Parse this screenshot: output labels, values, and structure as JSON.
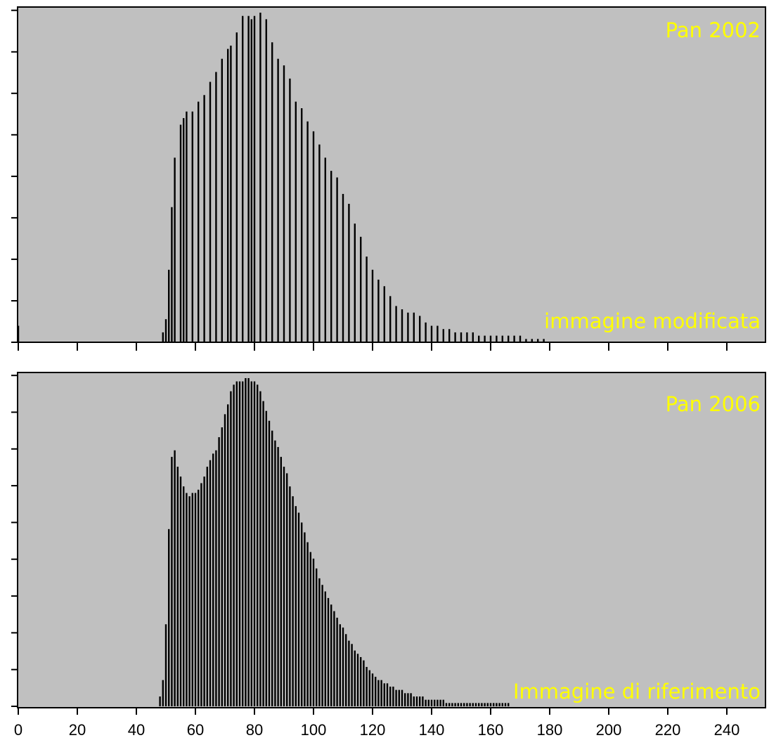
{
  "chart_data": [
    {
      "type": "bar",
      "title": "",
      "xlabel": "",
      "ylabel": "",
      "xlim": [
        0,
        255
      ],
      "ylim": [
        0,
        1
      ],
      "grid": false,
      "annotations": [
        "Pan 2002",
        "immagine modificata"
      ],
      "annotation_color": "#ffff00",
      "plot_background": "#c0c0c0",
      "bar_color": "#000000",
      "y_tick_count": 8,
      "x": [
        0,
        49,
        50,
        51,
        52,
        53,
        55,
        56,
        57,
        59,
        61,
        63,
        65,
        67,
        69,
        71,
        72,
        74,
        76,
        78,
        79,
        80,
        82,
        84,
        86,
        88,
        90,
        92,
        94,
        96,
        98,
        100,
        102,
        104,
        106,
        108,
        110,
        112,
        114,
        116,
        118,
        120,
        122,
        124,
        126,
        128,
        130,
        132,
        134,
        136,
        138,
        140,
        142,
        144,
        146,
        148,
        150,
        152,
        154,
        156,
        158,
        160,
        162,
        164,
        166,
        168,
        170,
        172,
        174,
        176,
        178
      ],
      "values": [
        0.05,
        0.03,
        0.07,
        0.22,
        0.41,
        0.56,
        0.66,
        0.68,
        0.7,
        0.7,
        0.73,
        0.75,
        0.79,
        0.82,
        0.86,
        0.89,
        0.9,
        0.94,
        0.99,
        0.99,
        0.98,
        0.99,
        1.0,
        0.98,
        0.91,
        0.86,
        0.84,
        0.8,
        0.73,
        0.71,
        0.67,
        0.64,
        0.6,
        0.56,
        0.52,
        0.5,
        0.45,
        0.42,
        0.36,
        0.32,
        0.26,
        0.22,
        0.19,
        0.17,
        0.14,
        0.11,
        0.1,
        0.09,
        0.09,
        0.08,
        0.06,
        0.05,
        0.05,
        0.04,
        0.04,
        0.03,
        0.03,
        0.03,
        0.03,
        0.02,
        0.02,
        0.02,
        0.02,
        0.02,
        0.02,
        0.02,
        0.02,
        0.01,
        0.01,
        0.01,
        0.01
      ]
    },
    {
      "type": "bar",
      "title": "",
      "xlabel": "",
      "ylabel": "",
      "xlim": [
        0,
        255
      ],
      "ylim": [
        0,
        1
      ],
      "grid": false,
      "annotations": [
        "Pan 2006",
        "Immagine di riferimento"
      ],
      "annotation_color": "#ffff00",
      "plot_background": "#c0c0c0",
      "bar_color": "#000000",
      "y_tick_count": 9,
      "x_ticks": [
        0,
        20,
        40,
        60,
        80,
        100,
        120,
        140,
        160,
        180,
        200,
        220,
        240
      ],
      "x_tick_labels": [
        "0",
        "20",
        "40",
        "60",
        "80",
        "100",
        "120",
        "140",
        "160",
        "180",
        "200",
        "220",
        "240"
      ],
      "x": [
        48,
        49,
        50,
        51,
        52,
        53,
        54,
        55,
        56,
        57,
        58,
        59,
        60,
        61,
        62,
        63,
        64,
        65,
        66,
        67,
        68,
        69,
        70,
        71,
        72,
        73,
        74,
        75,
        76,
        77,
        78,
        79,
        80,
        81,
        82,
        83,
        84,
        85,
        86,
        87,
        88,
        89,
        90,
        91,
        92,
        93,
        94,
        95,
        96,
        97,
        98,
        99,
        100,
        101,
        102,
        103,
        104,
        105,
        106,
        107,
        108,
        109,
        110,
        111,
        112,
        113,
        114,
        115,
        116,
        117,
        118,
        119,
        120,
        121,
        122,
        123,
        124,
        125,
        126,
        127,
        128,
        129,
        130,
        131,
        132,
        133,
        134,
        135,
        136,
        137,
        138,
        139,
        140,
        141,
        142,
        143,
        144,
        145,
        146,
        147,
        148,
        149,
        150,
        151,
        152,
        153,
        154,
        155,
        156,
        157,
        158,
        159,
        160,
        161,
        162,
        163,
        164,
        165,
        166
      ],
      "values": [
        0.03,
        0.08,
        0.25,
        0.54,
        0.76,
        0.78,
        0.73,
        0.7,
        0.67,
        0.65,
        0.64,
        0.65,
        0.65,
        0.66,
        0.68,
        0.7,
        0.73,
        0.75,
        0.77,
        0.78,
        0.82,
        0.85,
        0.89,
        0.92,
        0.96,
        0.98,
        0.99,
        0.99,
        0.99,
        1.0,
        1.0,
        0.99,
        0.99,
        0.98,
        0.96,
        0.93,
        0.9,
        0.87,
        0.84,
        0.81,
        0.79,
        0.76,
        0.73,
        0.71,
        0.67,
        0.64,
        0.61,
        0.59,
        0.56,
        0.53,
        0.5,
        0.47,
        0.45,
        0.42,
        0.39,
        0.37,
        0.35,
        0.33,
        0.31,
        0.29,
        0.27,
        0.25,
        0.24,
        0.22,
        0.2,
        0.19,
        0.17,
        0.16,
        0.15,
        0.14,
        0.12,
        0.11,
        0.1,
        0.09,
        0.08,
        0.08,
        0.07,
        0.07,
        0.06,
        0.06,
        0.05,
        0.05,
        0.05,
        0.04,
        0.04,
        0.04,
        0.03,
        0.03,
        0.03,
        0.03,
        0.02,
        0.02,
        0.02,
        0.02,
        0.02,
        0.02,
        0.02,
        0.01,
        0.01,
        0.01,
        0.01,
        0.01,
        0.01,
        0.01,
        0.01,
        0.01,
        0.01,
        0.01,
        0.01,
        0.01,
        0.01,
        0.01,
        0.01,
        0.01,
        0.01,
        0.01,
        0.01,
        0.01,
        0.01
      ]
    }
  ]
}
